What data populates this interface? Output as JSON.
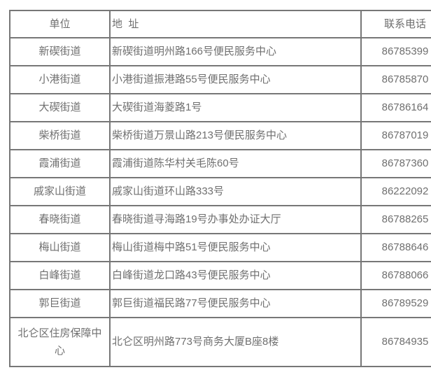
{
  "table": {
    "text_color": "#6f6f6f",
    "border_color": "#777777",
    "headers": [
      "单位",
      "地  址",
      "联系电话"
    ],
    "rows": [
      {
        "unit": "新碶街道",
        "address": "新碶街道明州路166号便民服务中心",
        "phone": "86785399"
      },
      {
        "unit": "小港街道",
        "address": "小港街道振港路55号便民服务中心",
        "phone": "86785870"
      },
      {
        "unit": "大碶街道",
        "address": "大碶街道海菱路1号",
        "phone": "86786164"
      },
      {
        "unit": "柴桥街道",
        "address": "柴桥街道万景山路213号便民服务中心",
        "phone": "86787019"
      },
      {
        "unit": "霞浦街道",
        "address": "霞浦街道陈华村关毛陈60号",
        "phone": "86787360"
      },
      {
        "unit": "戚家山街道",
        "address": "戚家山街道环山路333号",
        "phone": "86222092"
      },
      {
        "unit": "春晓街道",
        "address": "春晓街道寻海路19号办事处办证大厅",
        "phone": "86788265"
      },
      {
        "unit": "梅山街道",
        "address": "梅山街道梅中路51号便民服务中心",
        "phone": "86788646"
      },
      {
        "unit": "白峰街道",
        "address": "白峰街道龙口路43号便民服务中心",
        "phone": "86788066"
      },
      {
        "unit": "郭巨街道",
        "address": "郭巨街道福民路77号便民服务中心",
        "phone": "86789529"
      },
      {
        "unit": "北仑区住房保障中心",
        "address": "北仑区明州路773号商务大厦B座8楼",
        "phone": "86784935"
      }
    ]
  }
}
